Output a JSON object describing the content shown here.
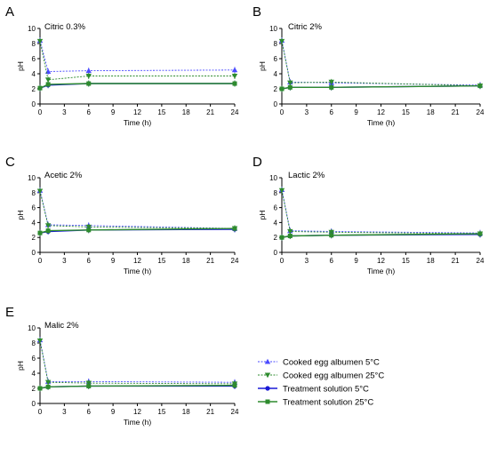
{
  "colors": {
    "cooked_5": "#4a4aff",
    "cooked_25": "#2e8b2e",
    "sol_5": "#1a1ad6",
    "sol_25": "#2e8b2e",
    "axis": "#000000"
  },
  "legend": {
    "items": [
      {
        "label": "Cooked egg albumen 5°C",
        "series": "cooked_5",
        "marker": "triangle-up",
        "dashed": true
      },
      {
        "label": "Cooked egg albumen 25°C",
        "series": "cooked_25",
        "marker": "triangle-down",
        "dashed": true
      },
      {
        "label": "Treatment solution 5°C",
        "series": "sol_5",
        "marker": "circle",
        "dashed": false
      },
      {
        "label": "Treatment solution 25°C",
        "series": "sol_25",
        "marker": "square",
        "dashed": false
      }
    ]
  },
  "chart_data": [
    {
      "type": "line",
      "panel_letter": "A",
      "title": "Citric 0.3%",
      "xlabel": "Time (h)",
      "ylabel": "pH",
      "xlim": [
        0,
        24
      ],
      "ylim": [
        0,
        10
      ],
      "xticks": [
        "0",
        "3",
        "6",
        "9",
        "12",
        "15",
        "18",
        "21",
        "24"
      ],
      "yticks": [
        "0",
        "2",
        "4",
        "6",
        "8",
        "10"
      ],
      "x": [
        0,
        1,
        6,
        24
      ],
      "series": [
        {
          "name": "Cooked egg albumen 5°C",
          "key": "cooked_5",
          "values": [
            8.4,
            4.3,
            4.4,
            4.5
          ]
        },
        {
          "name": "Cooked egg albumen 25°C",
          "key": "cooked_25",
          "values": [
            8.3,
            3.2,
            3.7,
            3.7
          ]
        },
        {
          "name": "Treatment solution 5°C",
          "key": "sol_5",
          "values": [
            2.1,
            2.5,
            2.7,
            2.7
          ]
        },
        {
          "name": "Treatment solution 25°C",
          "key": "sol_25",
          "values": [
            2.1,
            2.6,
            2.7,
            2.7
          ]
        }
      ]
    },
    {
      "type": "line",
      "panel_letter": "B",
      "title": "Citric 2%",
      "xlabel": "Time (h)",
      "ylabel": "pH",
      "xlim": [
        0,
        24
      ],
      "ylim": [
        0,
        10
      ],
      "xticks": [
        "0",
        "3",
        "6",
        "9",
        "12",
        "15",
        "18",
        "21",
        "24"
      ],
      "yticks": [
        "0",
        "2",
        "4",
        "6",
        "8",
        "10"
      ],
      "x": [
        0,
        1,
        6,
        24
      ],
      "series": [
        {
          "name": "Cooked egg albumen 5°C",
          "key": "cooked_5",
          "values": [
            8.4,
            2.9,
            2.8,
            2.5
          ]
        },
        {
          "name": "Cooked egg albumen 25°C",
          "key": "cooked_25",
          "values": [
            8.3,
            2.8,
            2.9,
            2.4
          ]
        },
        {
          "name": "Treatment solution 5°C",
          "key": "sol_5",
          "values": [
            2.0,
            2.2,
            2.2,
            2.4
          ]
        },
        {
          "name": "Treatment solution 25°C",
          "key": "sol_25",
          "values": [
            2.0,
            2.2,
            2.2,
            2.4
          ]
        }
      ]
    },
    {
      "type": "line",
      "panel_letter": "C",
      "title": "Acetic 2%",
      "xlabel": "Time (h)",
      "ylabel": "pH",
      "xlim": [
        0,
        24
      ],
      "ylim": [
        0,
        10
      ],
      "xticks": [
        "0",
        "3",
        "6",
        "9",
        "12",
        "15",
        "18",
        "21",
        "24"
      ],
      "yticks": [
        "0",
        "2",
        "4",
        "6",
        "8",
        "10"
      ],
      "x": [
        0,
        1,
        6,
        24
      ],
      "series": [
        {
          "name": "Cooked egg albumen 5°C",
          "key": "cooked_5",
          "values": [
            8.3,
            3.7,
            3.6,
            3.2
          ]
        },
        {
          "name": "Cooked egg albumen 25°C",
          "key": "cooked_25",
          "values": [
            8.2,
            3.6,
            3.4,
            3.2
          ]
        },
        {
          "name": "Treatment solution 5°C",
          "key": "sol_5",
          "values": [
            2.6,
            2.8,
            3.0,
            3.1
          ]
        },
        {
          "name": "Treatment solution 25°C",
          "key": "sol_25",
          "values": [
            2.6,
            2.9,
            3.0,
            3.2
          ]
        }
      ]
    },
    {
      "type": "line",
      "panel_letter": "D",
      "title": "Lactic 2%",
      "xlabel": "Time (h)",
      "ylabel": "pH",
      "xlim": [
        0,
        24
      ],
      "ylim": [
        0,
        10
      ],
      "xticks": [
        "0",
        "3",
        "6",
        "9",
        "12",
        "15",
        "18",
        "21",
        "24"
      ],
      "yticks": [
        "0",
        "2",
        "4",
        "6",
        "8",
        "10"
      ],
      "x": [
        0,
        1,
        6,
        24
      ],
      "series": [
        {
          "name": "Cooked egg albumen 5°C",
          "key": "cooked_5",
          "values": [
            8.4,
            2.9,
            2.8,
            2.6
          ]
        },
        {
          "name": "Cooked egg albumen 25°C",
          "key": "cooked_25",
          "values": [
            8.3,
            2.8,
            2.7,
            2.5
          ]
        },
        {
          "name": "Treatment solution 5°C",
          "key": "sol_5",
          "values": [
            2.0,
            2.2,
            2.3,
            2.4
          ]
        },
        {
          "name": "Treatment solution 25°C",
          "key": "sol_25",
          "values": [
            2.0,
            2.2,
            2.3,
            2.5
          ]
        }
      ]
    },
    {
      "type": "line",
      "panel_letter": "E",
      "title": "Malic 2%",
      "xlabel": "Time (h)",
      "ylabel": "pH",
      "xlim": [
        0,
        24
      ],
      "ylim": [
        0,
        10
      ],
      "xticks": [
        "0",
        "3",
        "6",
        "9",
        "12",
        "15",
        "18",
        "21",
        "24"
      ],
      "yticks": [
        "0",
        "2",
        "4",
        "6",
        "8",
        "10"
      ],
      "x": [
        0,
        1,
        6,
        24
      ],
      "series": [
        {
          "name": "Cooked egg albumen 5°C",
          "key": "cooked_5",
          "values": [
            8.4,
            2.9,
            2.9,
            2.8
          ]
        },
        {
          "name": "Cooked egg albumen 25°C",
          "key": "cooked_25",
          "values": [
            8.3,
            2.8,
            2.7,
            2.6
          ]
        },
        {
          "name": "Treatment solution 5°C",
          "key": "sol_5",
          "values": [
            2.0,
            2.2,
            2.3,
            2.3
          ]
        },
        {
          "name": "Treatment solution 25°C",
          "key": "sol_25",
          "values": [
            2.0,
            2.2,
            2.3,
            2.4
          ]
        }
      ]
    }
  ]
}
